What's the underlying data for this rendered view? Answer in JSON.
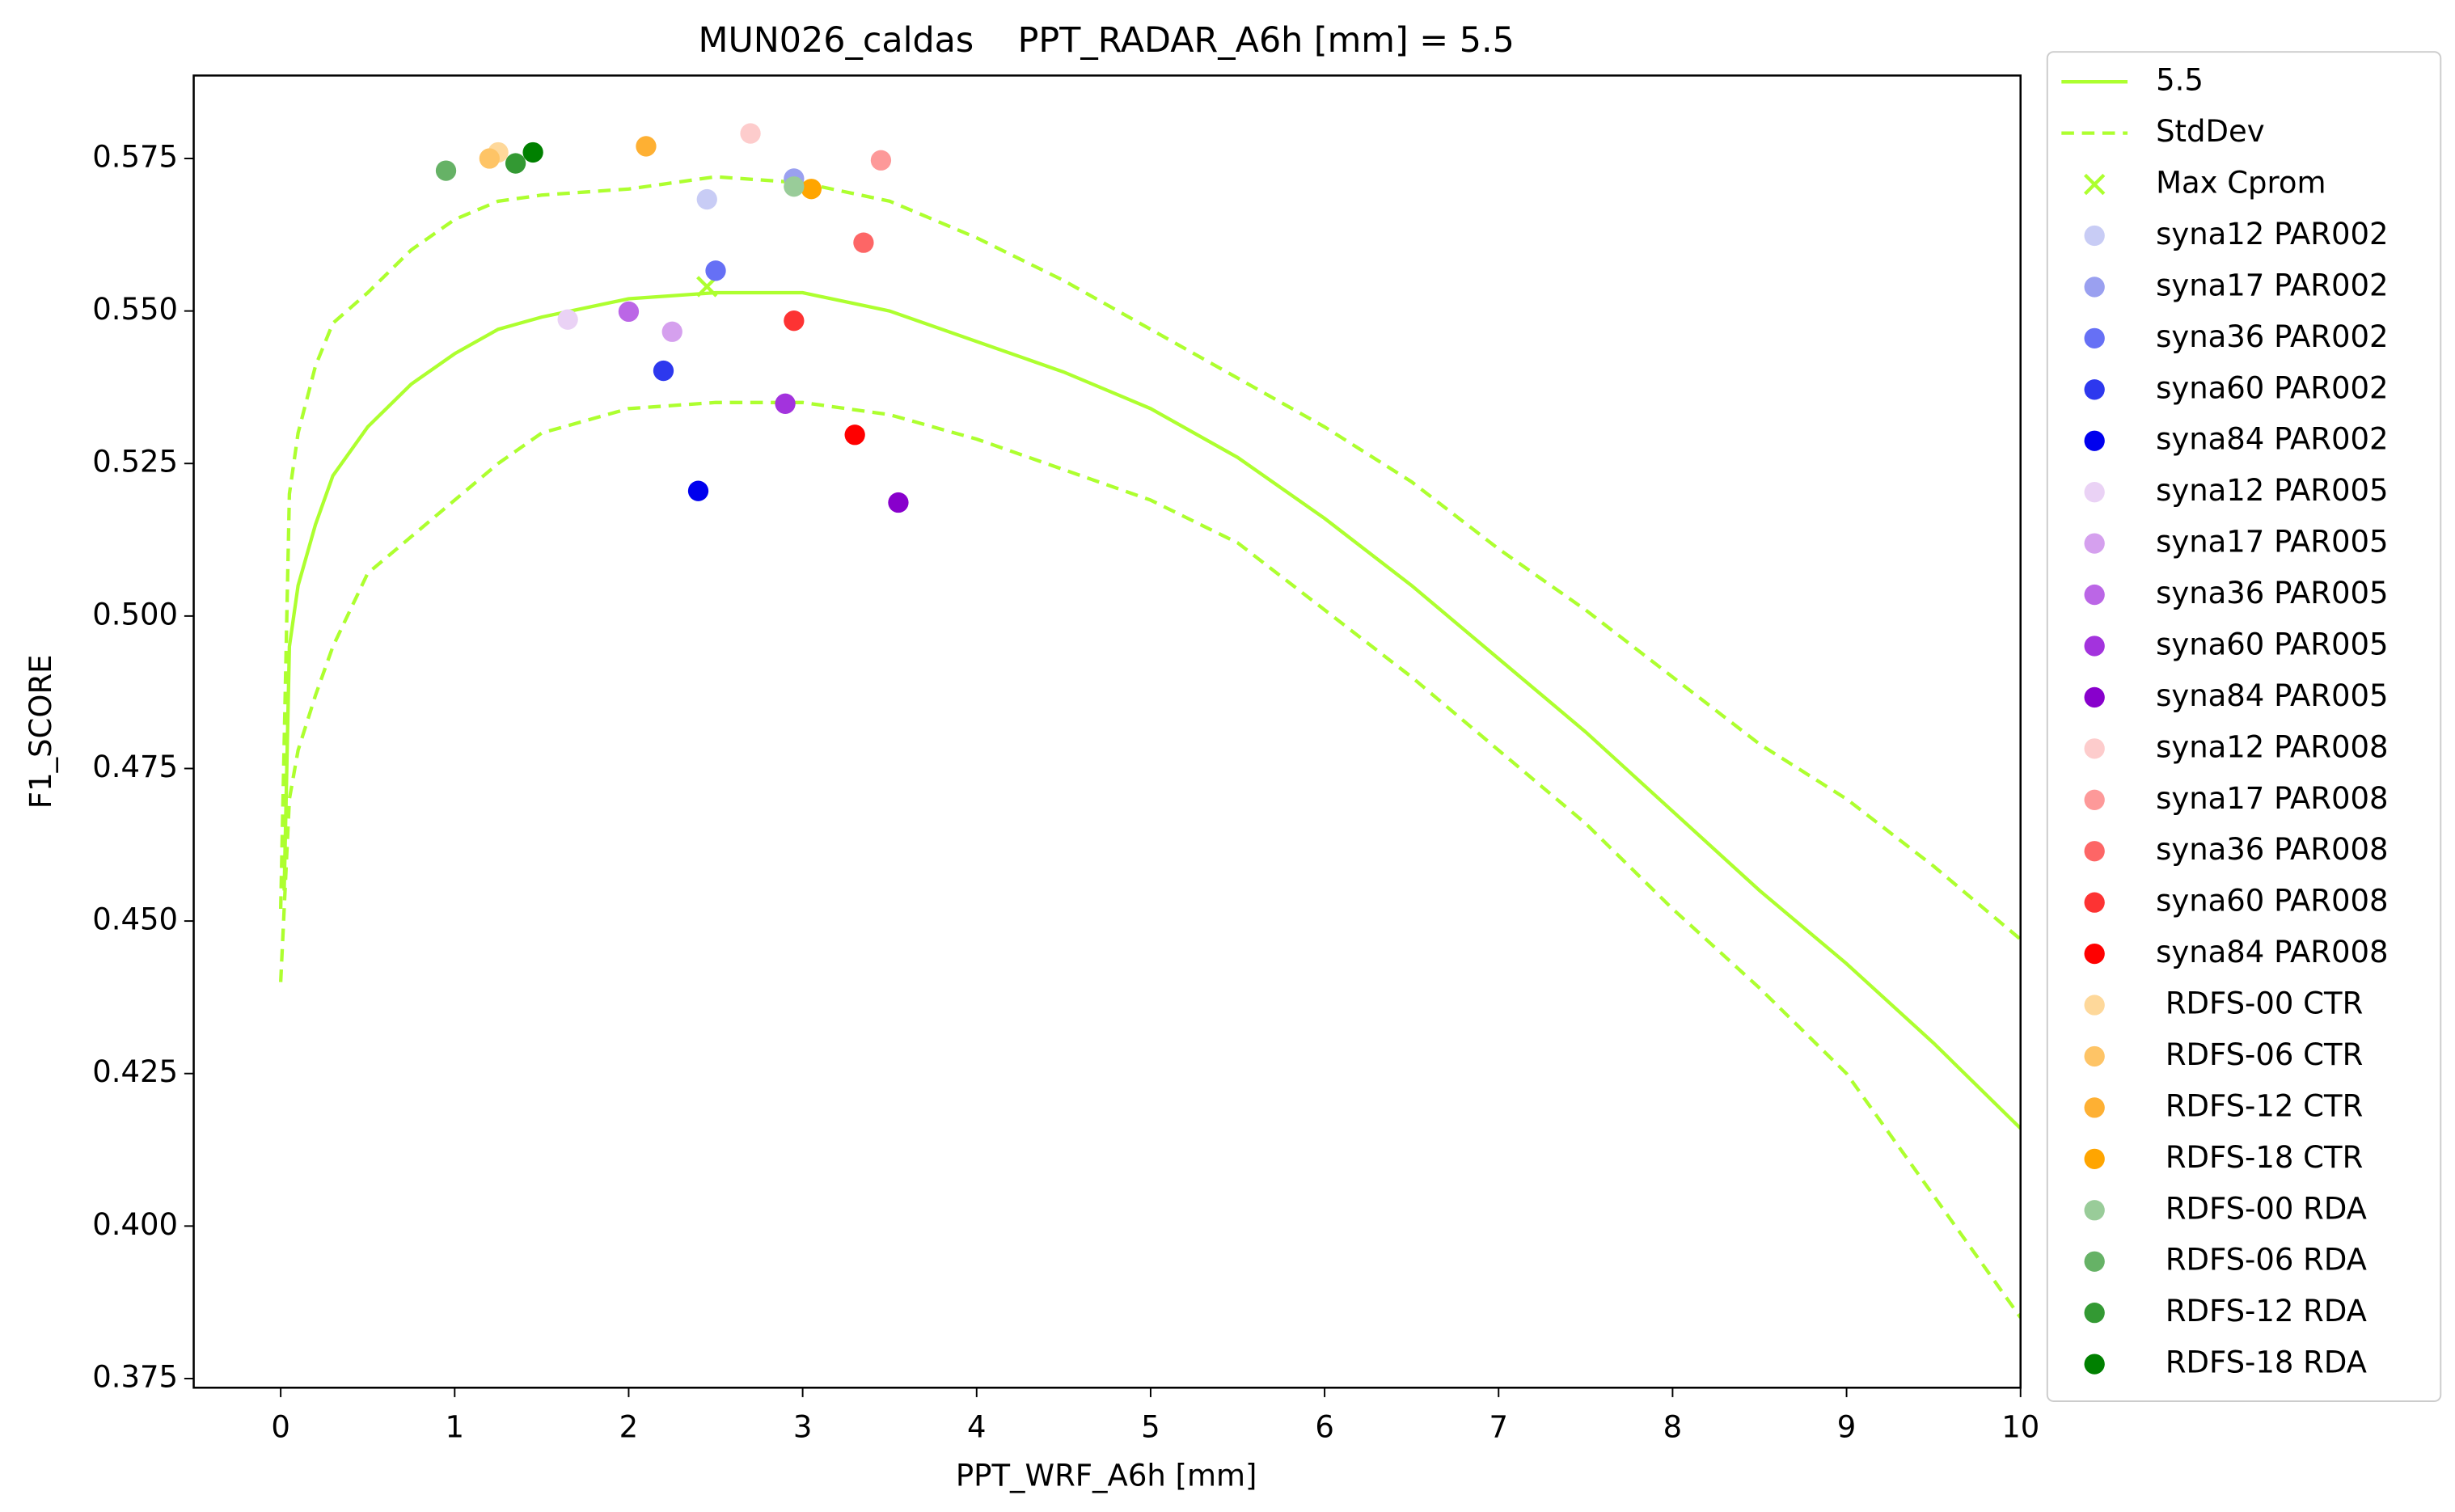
{
  "chart_data": {
    "type": "line",
    "title": "MUN026_caldas    PPT_RADAR_A6h [mm] = 5.5",
    "x_label": "PPT_WRF_A6h [mm]",
    "y_label": "F1_SCORE",
    "xlim": [
      -0.5,
      10
    ],
    "ylim": [
      0.3735,
      0.5886
    ],
    "xticks": [
      0,
      1,
      2,
      3,
      4,
      5,
      6,
      7,
      8,
      9,
      10
    ],
    "yticks": [
      0.375,
      {
        "value": 0.4,
        "label": "0.400"
      },
      0.425,
      {
        "value": 0.45,
        "label": "0.450"
      },
      0.475,
      {
        "value": 0.5,
        "label": "0.500"
      },
      0.525,
      {
        "value": 0.55,
        "label": "0.550"
      },
      0.575
    ],
    "legend": "outside right",
    "series": [
      {
        "name": "5.5",
        "kind": "line",
        "style": "solid",
        "color": "#adff2f",
        "x": [
          0.02,
          0.05,
          0.1,
          0.2,
          0.3,
          0.5,
          0.75,
          1.0,
          1.25,
          1.5,
          2.0,
          2.5,
          2.8,
          3.0,
          3.5,
          4.0,
          4.5,
          5.0,
          5.5,
          6.0,
          6.5,
          7.0,
          7.5,
          8.0,
          8.5,
          9.0,
          9.5,
          10
        ],
        "values": [
          0.455,
          0.495,
          0.505,
          0.515,
          0.523,
          0.531,
          0.538,
          0.543,
          0.547,
          0.549,
          0.552,
          0.553,
          0.553,
          0.553,
          0.55,
          0.545,
          0.54,
          0.534,
          0.526,
          0.516,
          0.505,
          0.493,
          0.481,
          0.468,
          0.455,
          0.443,
          0.43,
          0.416
        ]
      },
      {
        "name": "StdDev",
        "kind": "band",
        "style": "dashed",
        "color": "#adff2f",
        "x": [
          0.0,
          0.05,
          0.1,
          0.2,
          0.3,
          0.5,
          0.75,
          1.0,
          1.25,
          1.5,
          2.0,
          2.5,
          3.0,
          3.5,
          4.0,
          4.5,
          5.0,
          5.5,
          6.0,
          6.5,
          7.0,
          7.5,
          8.0,
          8.5,
          9.0,
          9.5,
          10
        ],
        "upper": [
          0.452,
          0.52,
          0.53,
          0.541,
          0.548,
          0.553,
          0.56,
          0.565,
          0.568,
          0.569,
          0.57,
          0.572,
          0.571,
          0.568,
          0.562,
          0.555,
          0.547,
          0.539,
          0.531,
          0.522,
          0.511,
          0.501,
          0.49,
          0.479,
          0.47,
          0.459,
          0.447
        ],
        "lower": [
          0.44,
          0.47,
          0.478,
          0.487,
          0.495,
          0.507,
          0.513,
          0.519,
          0.525,
          0.53,
          0.534,
          0.535,
          0.535,
          0.533,
          0.529,
          0.524,
          0.519,
          0.512,
          0.501,
          0.49,
          0.478,
          0.466,
          0.452,
          0.439,
          0.425,
          0.405,
          0.385
        ]
      },
      {
        "name": "Max Cprom",
        "kind": "cross",
        "color": "#adff2f",
        "x": [
          2.45
        ],
        "values": [
          0.554
        ]
      },
      {
        "name": "syna12 PAR002",
        "kind": "dot",
        "color": "#c8ccf5",
        "x": [
          2.45
        ],
        "values": [
          0.5683
        ]
      },
      {
        "name": "syna17 PAR002",
        "kind": "dot",
        "color": "#9aa0f0",
        "x": [
          2.95
        ],
        "values": [
          0.5717
        ]
      },
      {
        "name": "syna36 PAR002",
        "kind": "dot",
        "color": "#6670f5",
        "x": [
          2.5
        ],
        "values": [
          0.5566
        ]
      },
      {
        "name": "syna60 PAR002",
        "kind": "dot",
        "color": "#2d38ee",
        "x": [
          2.2
        ],
        "values": [
          0.5402
        ]
      },
      {
        "name": "syna84 PAR002",
        "kind": "dot",
        "color": "#0000ee",
        "x": [
          2.4
        ],
        "values": [
          0.5205
        ]
      },
      {
        "name": "syna12 PAR005",
        "kind": "dot",
        "color": "#ead2f5",
        "x": [
          1.65
        ],
        "values": [
          0.5486
        ]
      },
      {
        "name": "syna17 PAR005",
        "kind": "dot",
        "color": "#d5a0ee",
        "x": [
          2.25
        ],
        "values": [
          0.5466
        ]
      },
      {
        "name": "syna36 PAR005",
        "kind": "dot",
        "color": "#bb66e6",
        "x": [
          2.0
        ],
        "values": [
          0.5499
        ]
      },
      {
        "name": "syna60 PAR005",
        "kind": "dot",
        "color": "#a333dd",
        "x": [
          2.9
        ],
        "values": [
          0.5348
        ]
      },
      {
        "name": "syna84 PAR005",
        "kind": "dot",
        "color": "#8800cc",
        "x": [
          3.55
        ],
        "values": [
          0.5186
        ]
      },
      {
        "name": "syna12 PAR008",
        "kind": "dot",
        "color": "#fdcccc",
        "x": [
          2.7
        ],
        "values": [
          0.5791
        ]
      },
      {
        "name": "syna17 PAR008",
        "kind": "dot",
        "color": "#fd9999",
        "x": [
          3.45
        ],
        "values": [
          0.5747
        ]
      },
      {
        "name": "syna36 PAR008",
        "kind": "dot",
        "color": "#fd6666",
        "x": [
          3.35
        ],
        "values": [
          0.5612
        ]
      },
      {
        "name": "syna60 PAR008",
        "kind": "dot",
        "color": "#fd3333",
        "x": [
          2.95
        ],
        "values": [
          0.5484
        ]
      },
      {
        "name": "syna84 PAR008",
        "kind": "dot",
        "color": "#ff0000",
        "x": [
          3.3
        ],
        "values": [
          0.5297
        ]
      },
      {
        "name": " RDFS-00 CTR",
        "kind": "dot",
        "color": "#fed89a",
        "x": [
          1.25
        ],
        "values": [
          0.576
        ]
      },
      {
        "name": " RDFS-06 CTR",
        "kind": "dot",
        "color": "#fec466",
        "x": [
          1.2
        ],
        "values": [
          0.575
        ]
      },
      {
        "name": " RDFS-12 CTR",
        "kind": "dot",
        "color": "#feb033",
        "x": [
          2.1
        ],
        "values": [
          0.577
        ]
      },
      {
        "name": " RDFS-18 CTR",
        "kind": "dot",
        "color": "#ffa500",
        "x": [
          3.05
        ],
        "values": [
          0.57
        ]
      },
      {
        "name": " RDFS-00 RDA",
        "kind": "dot",
        "color": "#99cc99",
        "x": [
          2.95
        ],
        "values": [
          0.5704
        ]
      },
      {
        "name": " RDFS-06 RDA",
        "kind": "dot",
        "color": "#66b266",
        "x": [
          0.95
        ],
        "values": [
          0.573
        ]
      },
      {
        "name": " RDFS-12 RDA",
        "kind": "dot",
        "color": "#339933",
        "x": [
          1.35
        ],
        "values": [
          0.5742
        ]
      },
      {
        "name": " RDFS-18 RDA",
        "kind": "dot",
        "color": "#008000",
        "x": [
          1.45
        ],
        "values": [
          0.576
        ]
      }
    ]
  }
}
